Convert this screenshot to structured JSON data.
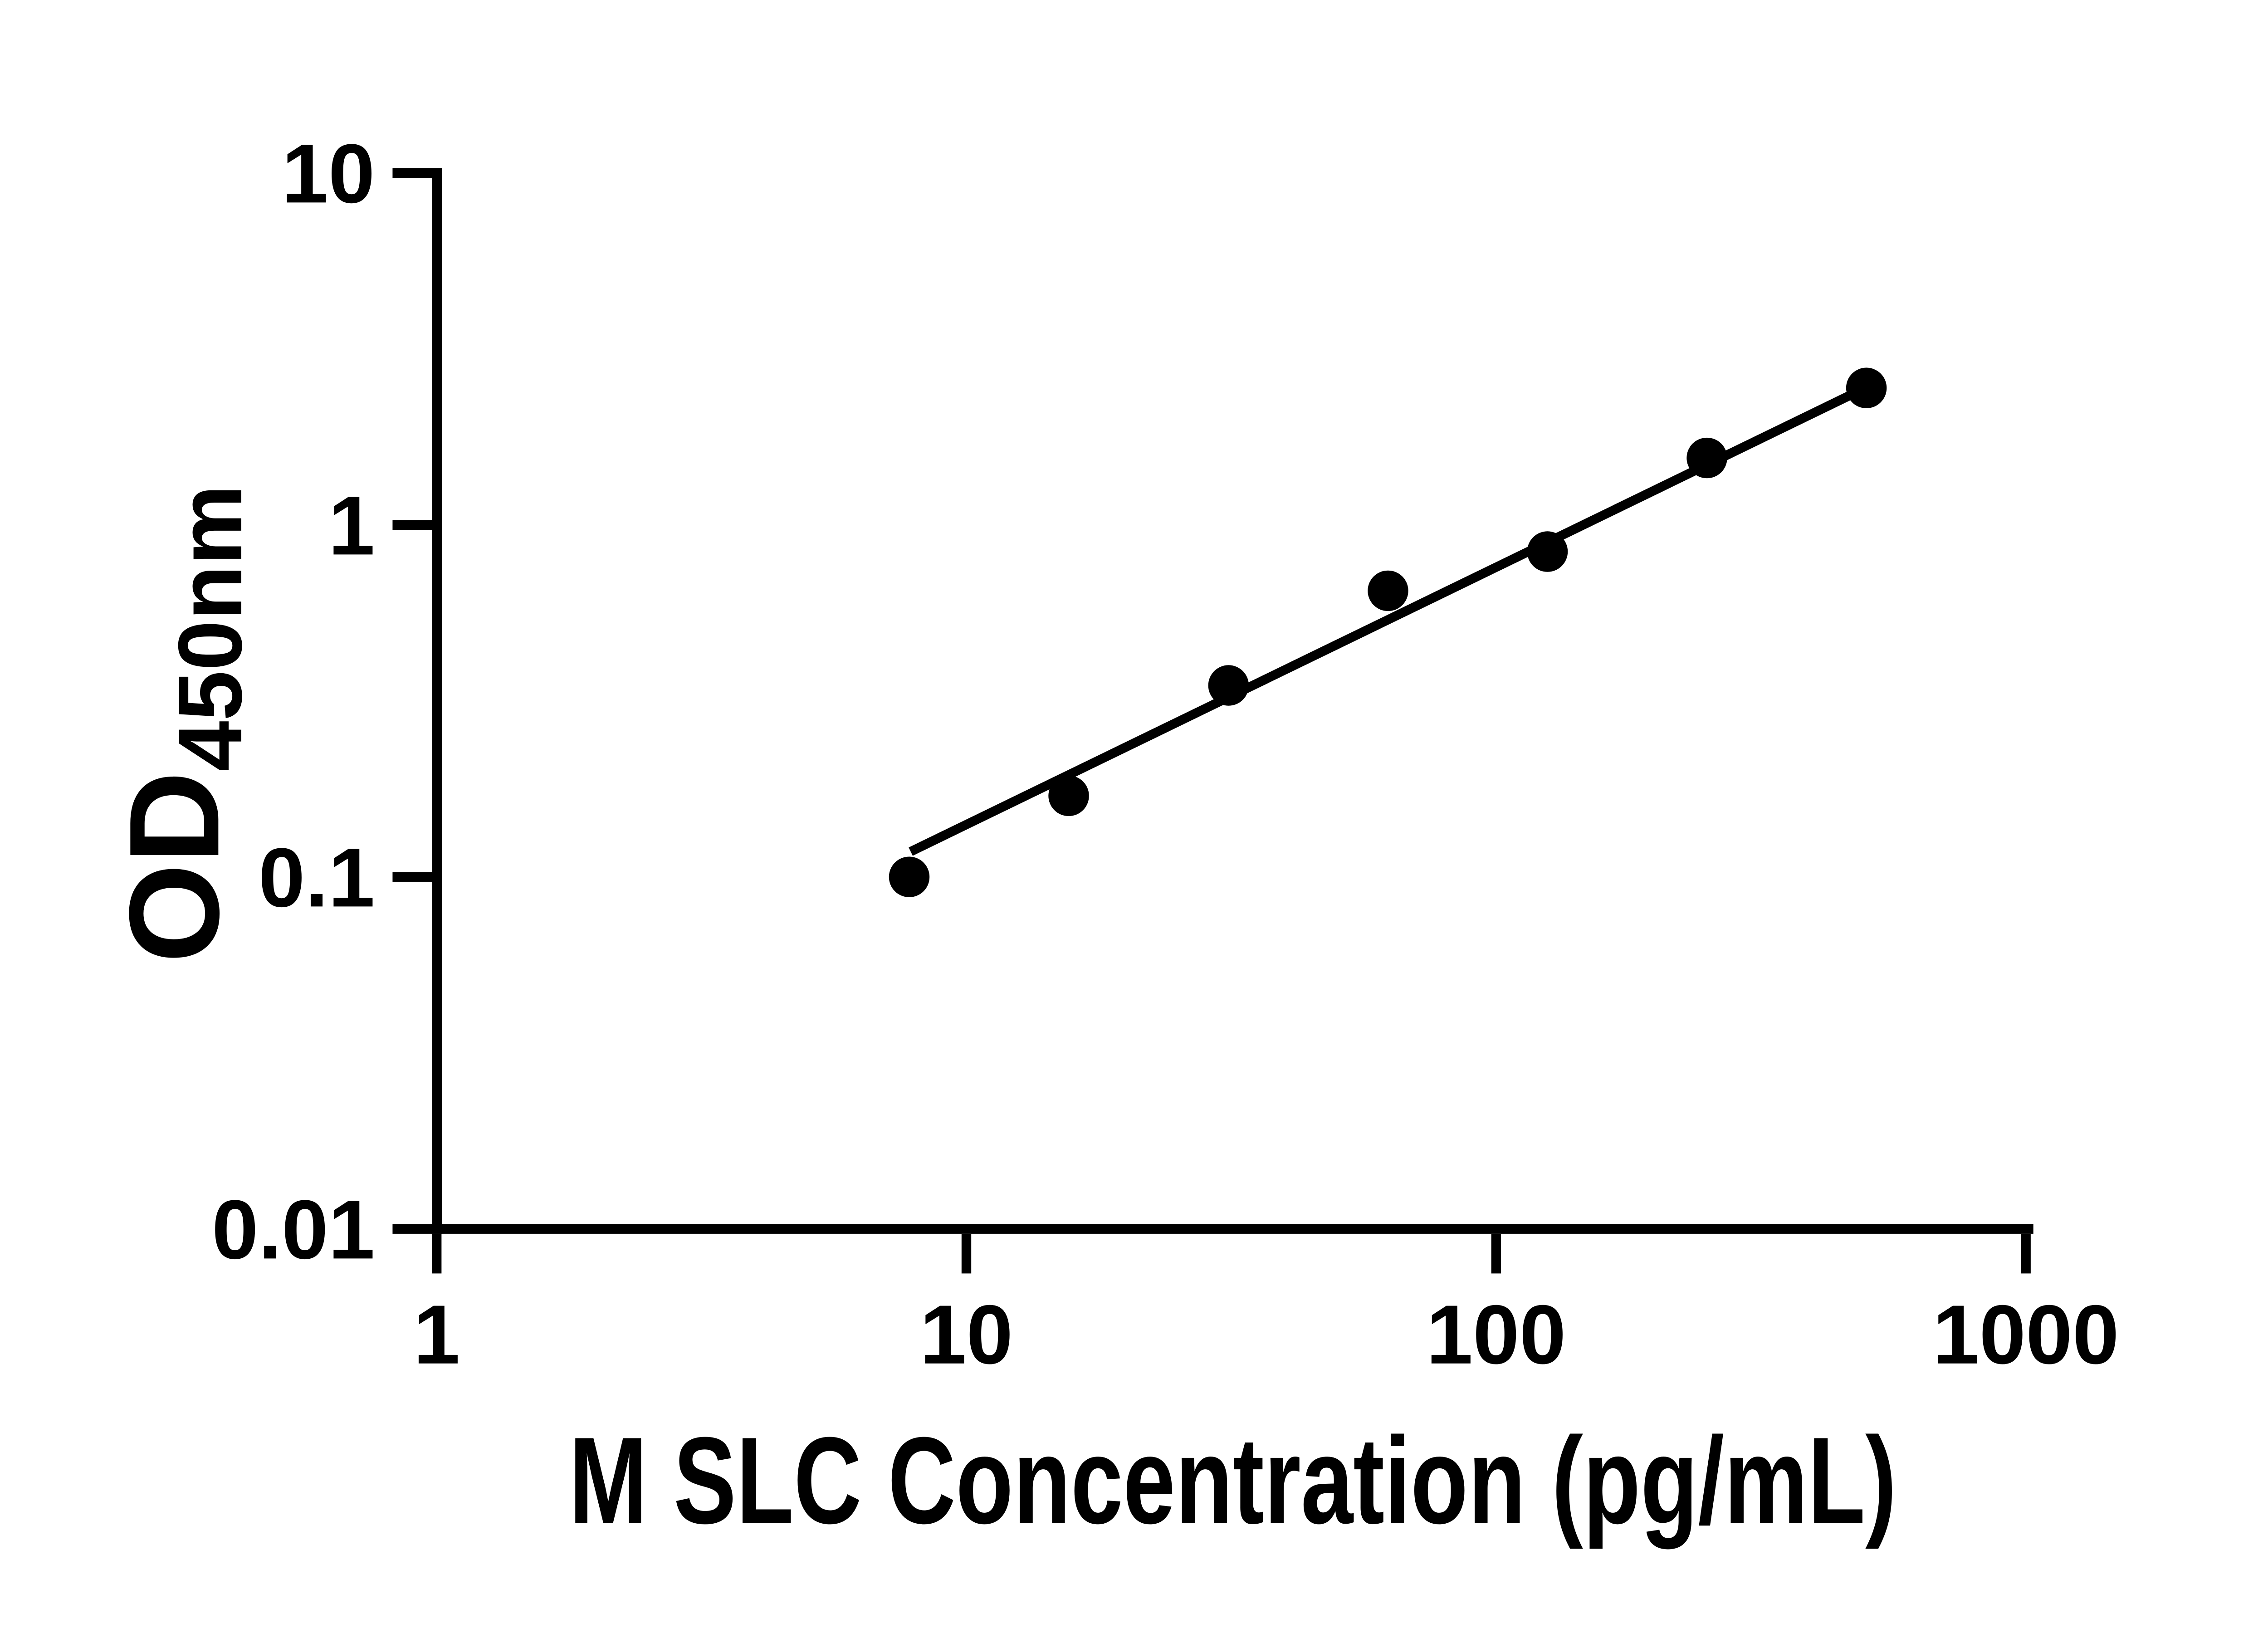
{
  "figure": {
    "background_color": "#ffffff",
    "foreground_color": "#000000"
  },
  "chart_data": {
    "type": "scatter",
    "title": "",
    "xlabel": "M SLC Concentration (pg/mL)",
    "ylabel_main": "OD",
    "ylabel_sub": "450nm",
    "x_scale": "log",
    "y_scale": "log",
    "xlim": [
      1,
      1000
    ],
    "ylim": [
      0.01,
      10
    ],
    "x_ticks": [
      1,
      10,
      100,
      1000
    ],
    "y_ticks": [
      10,
      1,
      0.1,
      0.01
    ],
    "grid": false,
    "legend": false,
    "series": [
      {
        "name": "standard-curve-points",
        "marker": "filled-circle",
        "color": "#000000",
        "x": [
          7.8,
          15.6,
          31.25,
          62.5,
          125,
          250,
          500
        ],
        "y": [
          0.1,
          0.17,
          0.35,
          0.65,
          0.84,
          1.55,
          2.45
        ]
      }
    ],
    "trendline": {
      "name": "fit-line",
      "color": "#000000",
      "x1": 7.85,
      "y1": 0.118,
      "x2": 500,
      "y2": 2.46
    }
  }
}
